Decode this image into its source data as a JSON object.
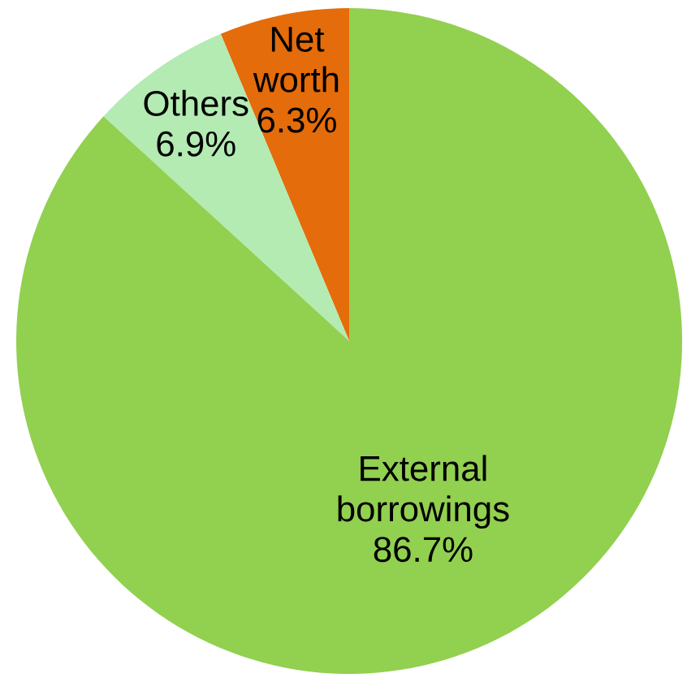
{
  "chart_data": {
    "type": "pie",
    "categories": [
      "Net worth",
      "Others",
      "External borrowings"
    ],
    "values": [
      6.3,
      6.9,
      86.7
    ],
    "value_labels": [
      "6.3%",
      "6.9%",
      "86.7%"
    ],
    "colors": [
      "#e46c0a",
      "#b3ebb3",
      "#92d050"
    ]
  }
}
